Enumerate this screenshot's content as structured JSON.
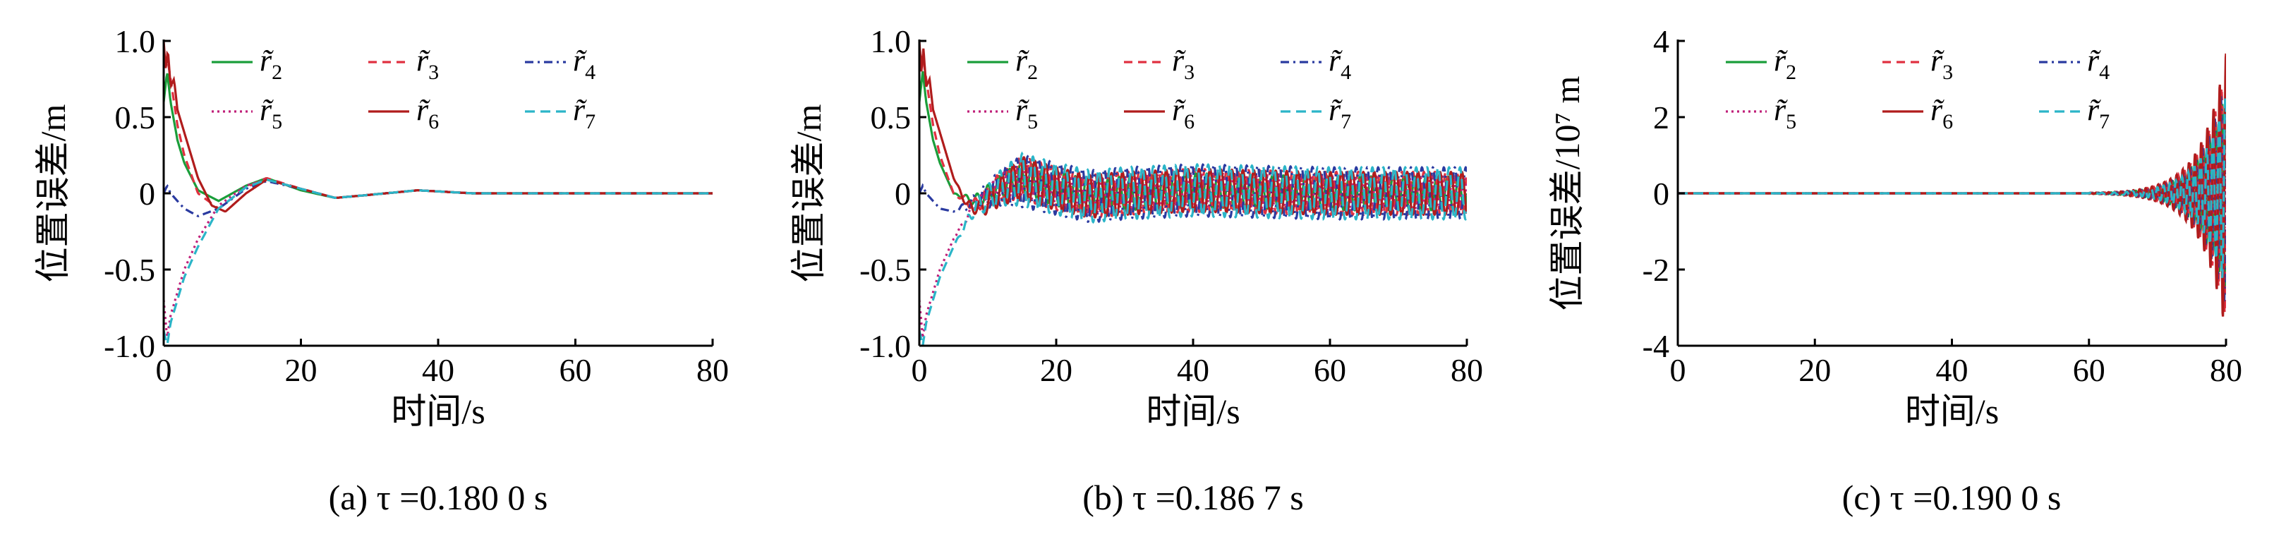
{
  "chart_data": [
    {
      "type": "line",
      "panel": "a",
      "caption": "(a) τ =0.180 0 s",
      "xlabel": "时间/s",
      "ylabel": "位置误差/m",
      "xlim": [
        0,
        80
      ],
      "ylim": [
        -1.0,
        1.0
      ],
      "xticks": [
        "0",
        "20",
        "40",
        "60",
        "80"
      ],
      "yticks": [
        "-1.0",
        "-0.5",
        "0",
        "0.5",
        "1.0"
      ],
      "legend_position": "top-left",
      "series": [
        {
          "name": "r̃2",
          "sub": "2",
          "color": "#1a9e3a",
          "dash": "",
          "x": [
            0,
            0.5,
            1,
            2,
            3,
            5,
            8,
            12,
            15,
            20,
            25,
            30,
            37,
            45,
            55,
            65,
            80
          ],
          "y": [
            0.6,
            0.8,
            0.6,
            0.35,
            0.2,
            0.02,
            -0.05,
            0.05,
            0.1,
            0.02,
            -0.03,
            -0.01,
            0.02,
            0.0,
            0.0,
            0.0,
            0.0
          ]
        },
        {
          "name": "r̃3",
          "sub": "3",
          "color": "#e03040",
          "dash": "12,8",
          "x": [
            0,
            0.5,
            1,
            2,
            3,
            5,
            8,
            12,
            15,
            20,
            25,
            30,
            37,
            45,
            55,
            65,
            80
          ],
          "y": [
            0.85,
            0.9,
            0.75,
            0.45,
            0.25,
            0.0,
            -0.1,
            0.04,
            0.1,
            0.03,
            -0.03,
            -0.01,
            0.02,
            0.0,
            0.0,
            0.0,
            0.0
          ]
        },
        {
          "name": "r̃4",
          "sub": "4",
          "color": "#2a3aa0",
          "dash": "12,6,3,6",
          "x": [
            0,
            0.5,
            1,
            2,
            3,
            5,
            8,
            12,
            15,
            20,
            25,
            30,
            37,
            45,
            55,
            65,
            80
          ],
          "y": [
            0.0,
            0.05,
            0.0,
            -0.05,
            -0.1,
            -0.15,
            -0.1,
            0.03,
            0.08,
            0.03,
            -0.03,
            -0.01,
            0.02,
            0.0,
            0.0,
            0.0,
            0.0
          ]
        },
        {
          "name": "r̃5",
          "sub": "5",
          "color": "#c0207a",
          "dash": "3,5",
          "x": [
            0,
            0.5,
            1,
            2,
            3,
            5,
            8,
            12,
            15,
            20,
            25,
            30,
            37,
            45,
            55,
            65,
            80
          ],
          "y": [
            -0.7,
            -0.95,
            -0.8,
            -0.65,
            -0.5,
            -0.3,
            -0.08,
            0.05,
            0.09,
            0.03,
            -0.03,
            -0.01,
            0.02,
            0.0,
            0.0,
            0.0,
            0.0
          ]
        },
        {
          "name": "r̃6",
          "sub": "6",
          "color": "#b01c1c",
          "dash": "",
          "x": [
            0,
            0.3,
            0.6,
            1,
            1.5,
            2,
            3,
            4,
            5,
            7,
            9,
            12,
            15,
            20,
            25,
            30,
            37,
            45,
            55,
            65,
            80
          ],
          "y": [
            1.0,
            0.8,
            0.95,
            0.7,
            0.75,
            0.55,
            0.4,
            0.25,
            0.1,
            -0.08,
            -0.12,
            0.0,
            0.09,
            0.03,
            -0.03,
            -0.01,
            0.02,
            0.0,
            0.0,
            0.0,
            0.0
          ]
        },
        {
          "name": "r̃7",
          "sub": "7",
          "color": "#2bb5c8",
          "dash": "14,8",
          "x": [
            0,
            0.5,
            1,
            2,
            3,
            5,
            8,
            12,
            15,
            20,
            25,
            30,
            37,
            45,
            55,
            65,
            80
          ],
          "y": [
            -0.9,
            -1.0,
            -0.85,
            -0.7,
            -0.55,
            -0.35,
            -0.1,
            0.04,
            0.09,
            0.03,
            -0.03,
            -0.01,
            0.02,
            0.0,
            0.0,
            0.0,
            0.0
          ]
        }
      ]
    },
    {
      "type": "line",
      "panel": "b",
      "caption": "(b) τ =0.186 7 s",
      "xlabel": "时间/s",
      "ylabel": "位置误差/m",
      "xlim": [
        0,
        80
      ],
      "ylim": [
        -1.0,
        1.0
      ],
      "xticks": [
        "0",
        "20",
        "40",
        "60",
        "80"
      ],
      "yticks": [
        "-1.0",
        "-0.5",
        "0",
        "0.5",
        "1.0"
      ],
      "legend_position": "top-left",
      "oscillation": {
        "start_x": 5,
        "amplitude": 0.17,
        "period": 1.6
      },
      "series": [
        {
          "name": "r̃2",
          "sub": "2",
          "color": "#1a9e3a",
          "dash": "",
          "x": [
            0,
            0.5,
            1,
            2,
            3,
            5,
            8,
            12,
            15,
            20,
            25,
            30,
            40,
            50,
            60,
            70,
            80
          ],
          "y": [
            0.6,
            0.8,
            0.6,
            0.35,
            0.2,
            0.0,
            -0.05,
            0.05,
            0.1,
            0.03,
            -0.02,
            0.0,
            0.02,
            0.01,
            0.0,
            0.0,
            0.0
          ]
        },
        {
          "name": "r̃3",
          "sub": "3",
          "color": "#e03040",
          "dash": "12,8",
          "x": [
            0,
            0.5,
            1,
            2,
            3,
            5,
            8,
            12,
            15,
            20,
            25,
            30,
            40,
            50,
            60,
            70,
            80
          ],
          "y": [
            0.85,
            0.9,
            0.75,
            0.45,
            0.25,
            0.0,
            -0.08,
            0.05,
            0.1,
            0.03,
            -0.02,
            0.0,
            0.02,
            0.01,
            0.0,
            0.0,
            0.0
          ]
        },
        {
          "name": "r̃4",
          "sub": "4",
          "color": "#2a3aa0",
          "dash": "12,6,3,6",
          "x": [
            0,
            0.5,
            1,
            2,
            3,
            5,
            8,
            12,
            15,
            20,
            25,
            30,
            40,
            50,
            60,
            70,
            80
          ],
          "y": [
            0.0,
            0.05,
            0.0,
            -0.05,
            -0.1,
            -0.12,
            -0.06,
            0.04,
            0.08,
            0.03,
            -0.02,
            0.0,
            0.02,
            0.01,
            0.0,
            0.0,
            0.0
          ]
        },
        {
          "name": "r̃5",
          "sub": "5",
          "color": "#c0207a",
          "dash": "3,5",
          "x": [
            0,
            0.5,
            1,
            2,
            3,
            5,
            8,
            12,
            15,
            20,
            25,
            30,
            40,
            50,
            60,
            70,
            80
          ],
          "y": [
            -0.7,
            -0.95,
            -0.8,
            -0.65,
            -0.5,
            -0.3,
            -0.08,
            0.05,
            0.09,
            0.03,
            -0.02,
            0.0,
            0.02,
            0.01,
            0.0,
            0.0,
            0.0
          ]
        },
        {
          "name": "r̃6",
          "sub": "6",
          "color": "#b01c1c",
          "dash": "",
          "x": [
            0,
            0.3,
            0.6,
            1,
            1.5,
            2,
            3,
            4,
            5,
            7,
            9,
            12,
            15,
            20,
            25,
            30,
            40,
            50,
            60,
            70,
            80
          ],
          "y": [
            1.0,
            0.8,
            0.95,
            0.7,
            0.75,
            0.55,
            0.4,
            0.25,
            0.1,
            -0.08,
            -0.1,
            0.02,
            0.1,
            0.03,
            -0.02,
            0.0,
            0.02,
            0.01,
            0.0,
            0.0,
            0.0
          ]
        },
        {
          "name": "r̃7",
          "sub": "7",
          "color": "#2bb5c8",
          "dash": "14,8",
          "x": [
            0,
            0.5,
            1,
            2,
            3,
            5,
            8,
            12,
            15,
            20,
            25,
            30,
            40,
            50,
            60,
            70,
            80
          ],
          "y": [
            -0.9,
            -1.0,
            -0.85,
            -0.7,
            -0.55,
            -0.35,
            -0.1,
            0.04,
            0.09,
            0.03,
            -0.02,
            0.0,
            0.02,
            0.01,
            0.0,
            0.0,
            0.0
          ]
        }
      ]
    },
    {
      "type": "line",
      "panel": "c",
      "caption": "(c) τ =0.190 0 s",
      "xlabel": "时间/s",
      "ylabel": "位置误差/10⁷ m",
      "xlim": [
        0,
        80
      ],
      "ylim": [
        -4,
        4
      ],
      "xticks": [
        "0",
        "20",
        "40",
        "60",
        "80"
      ],
      "yticks": [
        "-4",
        "-2",
        "0",
        "2",
        "4"
      ],
      "ytick_values": [
        -4,
        -2,
        0,
        2,
        4
      ],
      "legend_position": "top-left",
      "growth": {
        "start_x": 60,
        "final_amplitude": 3.7,
        "period": 0.9
      },
      "series": [
        {
          "name": "r̃2",
          "sub": "2",
          "color": "#1a9e3a",
          "dash": "",
          "amp": 0.75
        },
        {
          "name": "r̃3",
          "sub": "3",
          "color": "#e03040",
          "dash": "12,8",
          "amp": 0.9
        },
        {
          "name": "r̃4",
          "sub": "4",
          "color": "#2a3aa0",
          "dash": "12,6,3,6",
          "amp": 0.85
        },
        {
          "name": "r̃5",
          "sub": "5",
          "color": "#c0207a",
          "dash": "3,5",
          "amp": 0.8
        },
        {
          "name": "r̃6",
          "sub": "6",
          "color": "#b01c1c",
          "dash": "",
          "amp": 1.0
        },
        {
          "name": "r̃7",
          "sub": "7",
          "color": "#2bb5c8",
          "dash": "14,8",
          "amp": 0.7
        }
      ]
    }
  ]
}
